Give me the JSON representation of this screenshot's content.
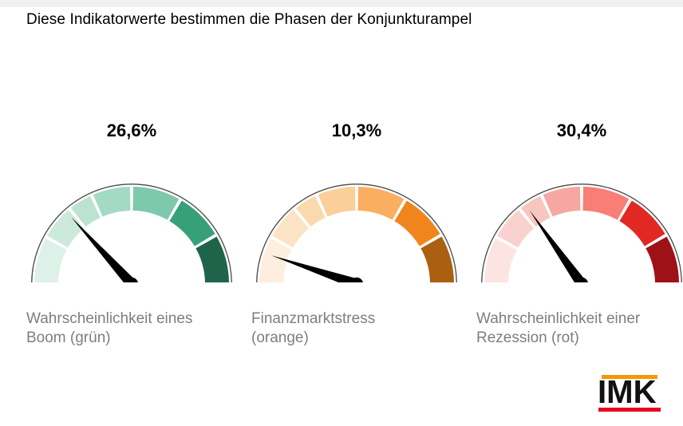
{
  "page": {
    "title": "Diese Indikatorwerte bestimmen die Phasen der Konjunkturampel"
  },
  "chart_data": [
    {
      "type": "gauge",
      "value_pct": 26.6,
      "value_label": "26,6%",
      "caption_lines": [
        "Wahrscheinlichkeit eines",
        "Boom (grün)"
      ],
      "min_pct": 0,
      "max_pct": 100,
      "arc_span_degrees": 180,
      "segment_bounds_pct": [
        0,
        16,
        28,
        36.5,
        50,
        66.7,
        83.3,
        100
      ],
      "segment_colors": [
        "#def1e8",
        "#cce9dc",
        "#bce3d2",
        "#a3dac6",
        "#7ec9ad",
        "#37a078",
        "#1e644a"
      ],
      "needle_color": "#000000",
      "outline_color": "#4a4a4a"
    },
    {
      "type": "gauge",
      "value_pct": 10.3,
      "value_label": "10,3%",
      "caption_lines": [
        "Finanzmarktstress",
        "(orange)"
      ],
      "min_pct": 0,
      "max_pct": 100,
      "arc_span_degrees": 180,
      "segment_bounds_pct": [
        0,
        16,
        28,
        36.5,
        50,
        66.7,
        83.3,
        100
      ],
      "segment_colors": [
        "#fdeedd",
        "#fce3c6",
        "#fbd9af",
        "#fbcf9a",
        "#faae60",
        "#f1851d",
        "#ab5f11"
      ],
      "needle_color": "#000000",
      "outline_color": "#4a4a4a"
    },
    {
      "type": "gauge",
      "value_pct": 30.4,
      "value_label": "30,4%",
      "caption_lines": [
        "Wahrscheinlichkeit einer",
        "Rezession (rot)"
      ],
      "min_pct": 0,
      "max_pct": 100,
      "arc_span_degrees": 180,
      "segment_bounds_pct": [
        0,
        16,
        28,
        36.5,
        50,
        66.7,
        83.3,
        100
      ],
      "segment_colors": [
        "#fce4e2",
        "#f9d2cf",
        "#f8c6c1",
        "#f6a7a2",
        "#f87e76",
        "#e22823",
        "#9e1117"
      ],
      "needle_color": "#000000",
      "outline_color": "#4a4a4a"
    }
  ],
  "logo": {
    "text": "IMK",
    "top_bar_color": "#F49800",
    "bottom_bar_color": "#E40521",
    "text_color": "#111111"
  },
  "colors": {
    "background": "#ffffff",
    "title_text": "#000000",
    "value_text": "#000000",
    "caption_text": "#7e7e7e"
  }
}
